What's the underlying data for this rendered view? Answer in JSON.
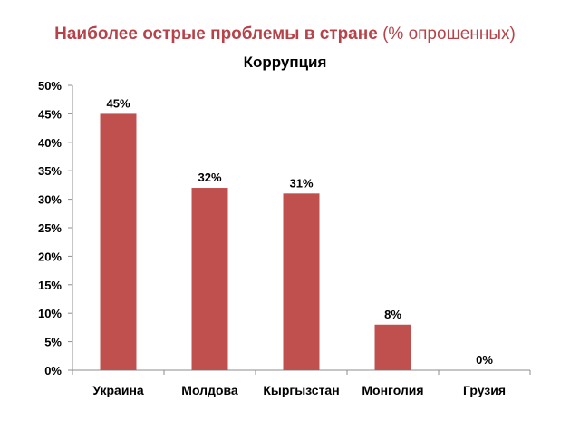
{
  "slide": {
    "title_main": "Наиболее острые проблемы в стране",
    "title_note": "(% опрошенных)"
  },
  "chart_data": {
    "type": "bar",
    "title": "Коррупция",
    "categories": [
      "Украина",
      "Молдова",
      "Кыргызстан",
      "Монголия",
      "Грузия"
    ],
    "values": [
      45,
      32,
      31,
      8,
      0
    ],
    "data_labels": [
      "45%",
      "32%",
      "31%",
      "8%",
      "0%"
    ],
    "ylim": [
      0,
      50
    ],
    "yticks": [
      0,
      5,
      10,
      15,
      20,
      25,
      30,
      35,
      40,
      45,
      50
    ],
    "ytick_labels": [
      "0%",
      "5%",
      "10%",
      "15%",
      "20%",
      "25%",
      "30%",
      "35%",
      "40%",
      "45%",
      "50%"
    ],
    "xlabel": "",
    "ylabel": "",
    "grid": false,
    "legend": "none",
    "bar_color": "#c0504d",
    "title_color": "#b7434a"
  }
}
